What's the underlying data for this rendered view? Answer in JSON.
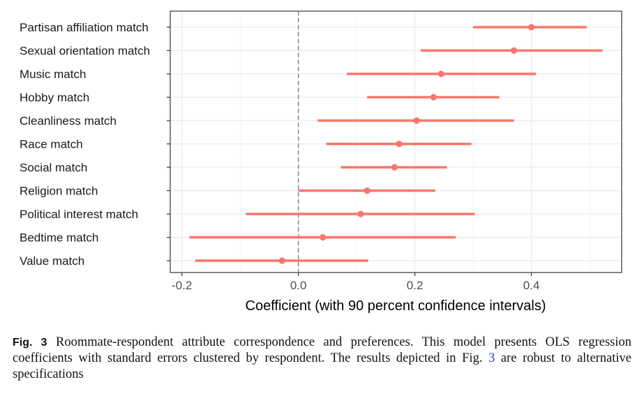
{
  "chart_data": {
    "type": "dot-and-interval",
    "xlabel": "Coefficient (with 90 percent confidence intervals)",
    "xlim": [
      -0.22,
      0.555
    ],
    "xticks": [
      -0.2,
      0.0,
      0.2,
      0.4
    ],
    "xtick_labels": [
      "-0.2",
      "0.0",
      "0.2",
      "0.4"
    ],
    "reference_line": 0.0,
    "series_color": "#f8766d",
    "categories": [
      "Partisan affiliation match",
      "Sexual orientation match",
      "Music match",
      "Hobby match",
      "Cleanliness match",
      "Race match",
      "Social match",
      "Religion match",
      "Political interest match",
      "Bedtime match",
      "Value match"
    ],
    "estimates": [
      0.4,
      0.37,
      0.245,
      0.232,
      0.203,
      0.173,
      0.165,
      0.118,
      0.107,
      0.042,
      -0.028
    ],
    "lower": [
      0.3,
      0.21,
      0.083,
      0.118,
      0.033,
      0.048,
      0.073,
      0.0,
      -0.09,
      -0.187,
      -0.177
    ],
    "upper": [
      0.495,
      0.522,
      0.408,
      0.345,
      0.37,
      0.297,
      0.255,
      0.235,
      0.303,
      0.27,
      0.12
    ]
  },
  "caption": {
    "label": "Fig. 3",
    "text_before_ref": "Roommate-respondent attribute correspondence and preferences. This model presents OLS regression coefficients with standard errors clustered by respondent. The results depicted in Fig.",
    "ref": "3",
    "text_after_ref": "are robust to alternative specifications"
  }
}
